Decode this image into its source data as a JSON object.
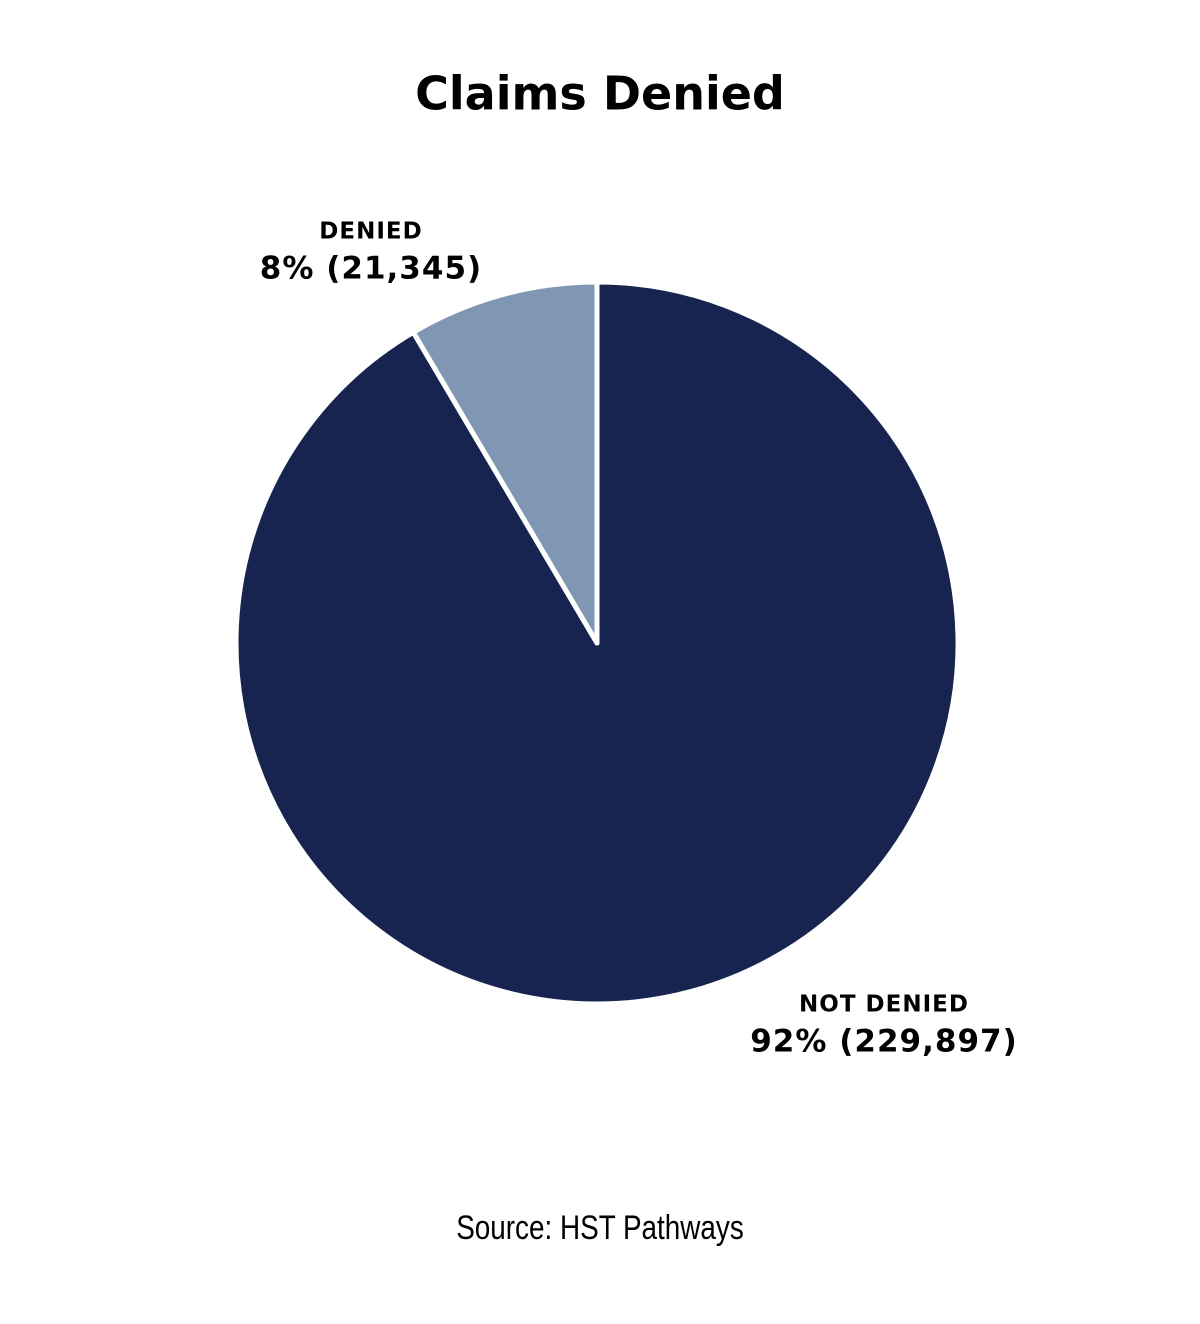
{
  "chart_data": {
    "type": "pie",
    "title": "Claims Denied",
    "categories": [
      "NOT DENIED",
      "DENIED"
    ],
    "values": [
      229897,
      21345
    ],
    "value_labels": [
      "92% (229,897)",
      "8% (21,345)"
    ],
    "colors": [
      "#17244f",
      "#7f97b2"
    ],
    "source": "Source: HST Pathways"
  }
}
